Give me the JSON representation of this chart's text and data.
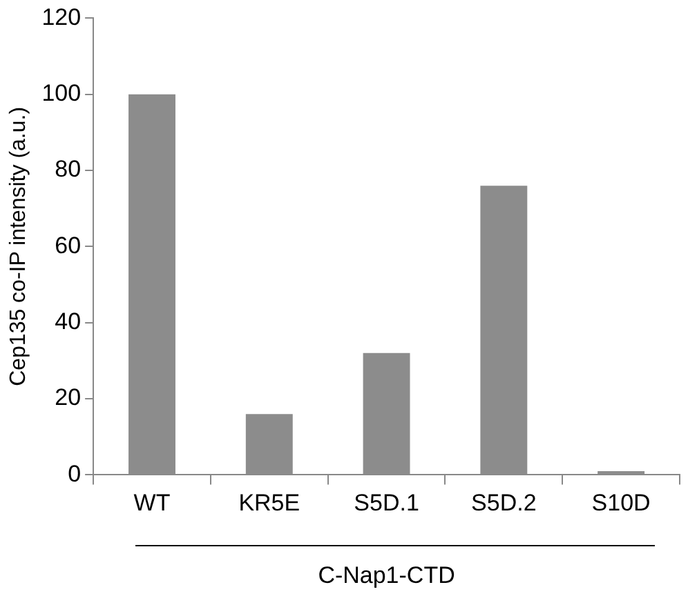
{
  "chart_data": {
    "type": "bar",
    "categories": [
      "WT",
      "KR5E",
      "S5D.1",
      "S5D.2",
      "S10D"
    ],
    "values": [
      100,
      16,
      32,
      76,
      1
    ],
    "color": "#8c8c8c",
    "ylim": [
      0,
      120
    ],
    "yticks": [
      0,
      20,
      40,
      60,
      80,
      100,
      120
    ],
    "ylabel": "Cep135 co-IP intensity (a.u.)",
    "xlabel": "C-Nap1-CTD",
    "grid": false,
    "legend": false
  }
}
